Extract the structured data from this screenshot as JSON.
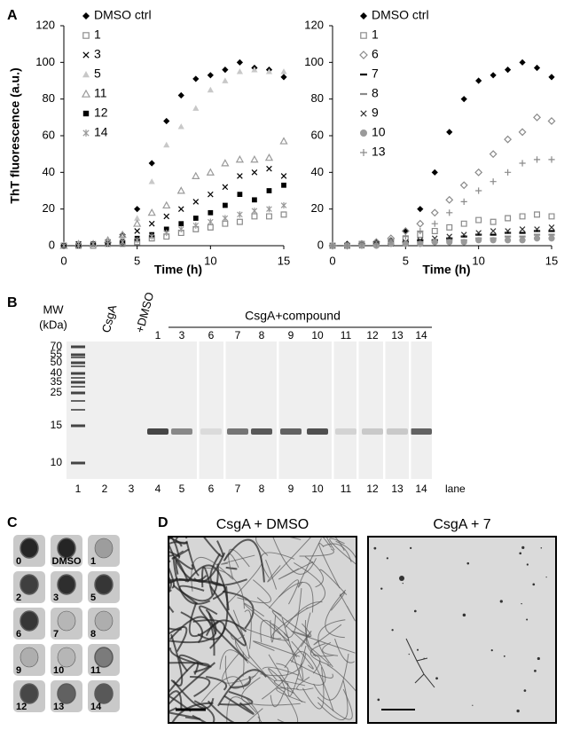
{
  "figure_labels": [
    "A",
    "B",
    "C",
    "D"
  ],
  "chart_data": [
    {
      "type": "scatter",
      "xlabel": "Time (h)",
      "ylabel": "ThT fluorescence (a.u.)",
      "x": [
        0,
        1,
        2,
        3,
        4,
        5,
        6,
        7,
        8,
        9,
        10,
        11,
        12,
        13,
        14,
        15
      ],
      "xlim": [
        0,
        15
      ],
      "xticks": [
        0,
        5,
        10,
        15
      ],
      "ylim": [
        0,
        120
      ],
      "yticks": [
        0,
        20,
        40,
        60,
        80,
        100,
        120
      ],
      "series": [
        {
          "name": "DMSO ctrl",
          "color": "#000000",
          "marker": "diamond",
          "values": [
            0,
            1,
            1,
            2,
            6,
            20,
            45,
            68,
            82,
            91,
            93,
            96,
            100,
            97,
            96,
            92
          ]
        },
        {
          "name": "1",
          "color": "#8a8a8a",
          "marker": "square-open",
          "values": [
            0,
            0,
            0,
            1,
            1,
            2,
            4,
            5,
            7,
            9,
            10,
            12,
            13,
            16,
            16,
            17
          ]
        },
        {
          "name": "3",
          "color": "#000000",
          "marker": "x",
          "values": [
            0,
            1,
            1,
            2,
            4,
            8,
            12,
            16,
            20,
            24,
            28,
            32,
            38,
            40,
            42,
            38
          ]
        },
        {
          "name": "5",
          "color": "#c8c8c8",
          "marker": "triangle",
          "values": [
            0,
            1,
            1,
            2,
            5,
            15,
            35,
            55,
            65,
            75,
            85,
            90,
            95,
            96,
            95,
            95
          ]
        },
        {
          "name": "11",
          "color": "#9a9a9a",
          "marker": "triangle-open",
          "values": [
            0,
            1,
            1,
            3,
            6,
            12,
            18,
            22,
            30,
            38,
            40,
            45,
            47,
            47,
            48,
            57
          ]
        },
        {
          "name": "12",
          "color": "#000000",
          "marker": "square",
          "values": [
            0,
            0,
            1,
            1,
            2,
            4,
            6,
            9,
            12,
            15,
            18,
            22,
            28,
            25,
            30,
            33
          ]
        },
        {
          "name": "14",
          "color": "#9a9a9a",
          "marker": "asterisk",
          "values": [
            0,
            0,
            1,
            1,
            2,
            3,
            5,
            7,
            9,
            11,
            13,
            15,
            17,
            19,
            20,
            22
          ]
        }
      ]
    },
    {
      "type": "scatter",
      "xlabel": "Time (h)",
      "x": [
        0,
        1,
        2,
        3,
        4,
        5,
        6,
        7,
        8,
        9,
        10,
        11,
        12,
        13,
        14,
        15
      ],
      "xlim": [
        0,
        15
      ],
      "xticks": [
        0,
        5,
        10,
        15
      ],
      "ylim": [
        0,
        120
      ],
      "yticks": [
        0,
        20,
        40,
        60,
        80,
        100,
        120
      ],
      "series": [
        {
          "name": "DMSO ctrl",
          "color": "#000000",
          "marker": "diamond",
          "values": [
            0,
            1,
            1,
            2,
            3,
            8,
            20,
            40,
            62,
            80,
            90,
            93,
            96,
            100,
            97,
            92
          ]
        },
        {
          "name": "1",
          "color": "#8a8a8a",
          "marker": "square-open",
          "values": [
            0,
            0,
            1,
            1,
            2,
            4,
            6,
            8,
            10,
            12,
            14,
            13,
            15,
            16,
            17,
            16
          ]
        },
        {
          "name": "6",
          "color": "#8a8a8a",
          "marker": "diamond-open",
          "values": [
            0,
            0,
            1,
            2,
            4,
            8,
            12,
            18,
            25,
            33,
            40,
            50,
            58,
            62,
            70,
            68
          ]
        },
        {
          "name": "7",
          "color": "#000000",
          "marker": "dash",
          "values": [
            0,
            0,
            0,
            1,
            1,
            2,
            3,
            3,
            4,
            5,
            6,
            6,
            7,
            7,
            8,
            8
          ]
        },
        {
          "name": "8",
          "color": "#8a8a8a",
          "marker": "dash",
          "values": [
            0,
            0,
            0,
            0,
            1,
            1,
            2,
            2,
            3,
            3,
            4,
            4,
            5,
            5,
            6,
            6
          ]
        },
        {
          "name": "9",
          "color": "#333333",
          "marker": "x",
          "values": [
            0,
            0,
            0,
            1,
            1,
            2,
            3,
            4,
            5,
            6,
            7,
            8,
            8,
            9,
            9,
            10
          ]
        },
        {
          "name": "10",
          "color": "#9a9a9a",
          "marker": "circle",
          "values": [
            0,
            0,
            0,
            0,
            1,
            1,
            1,
            2,
            2,
            2,
            3,
            3,
            3,
            3,
            4,
            4
          ]
        },
        {
          "name": "13",
          "color": "#8a8a8a",
          "marker": "plus",
          "values": [
            0,
            0,
            1,
            1,
            3,
            5,
            8,
            12,
            18,
            24,
            30,
            35,
            40,
            45,
            47,
            47
          ]
        }
      ]
    }
  ],
  "gel": {
    "mw_label": [
      "MW",
      "(kDa)"
    ],
    "mw_markers": [
      70,
      55,
      50,
      40,
      35,
      25,
      15,
      10
    ],
    "control_labels": [
      "CsgA",
      "+DMSO"
    ],
    "compound_header": "CsgA+compound",
    "compounds": [
      1,
      3,
      6,
      7,
      8,
      9,
      10,
      11,
      12,
      13,
      14
    ],
    "lanes": [
      1,
      2,
      3,
      4,
      5,
      6,
      7,
      8,
      9,
      10,
      11,
      12,
      13,
      14
    ],
    "lane_label": "lane"
  },
  "dot_blot": {
    "labels": [
      "0",
      "DMSO",
      "1",
      "2",
      "3",
      "5",
      "6",
      "7",
      "8",
      "9",
      "10",
      "11",
      "12",
      "13",
      "14"
    ]
  },
  "em": {
    "titles": [
      "CsgA + DMSO",
      "CsgA + 7"
    ]
  }
}
